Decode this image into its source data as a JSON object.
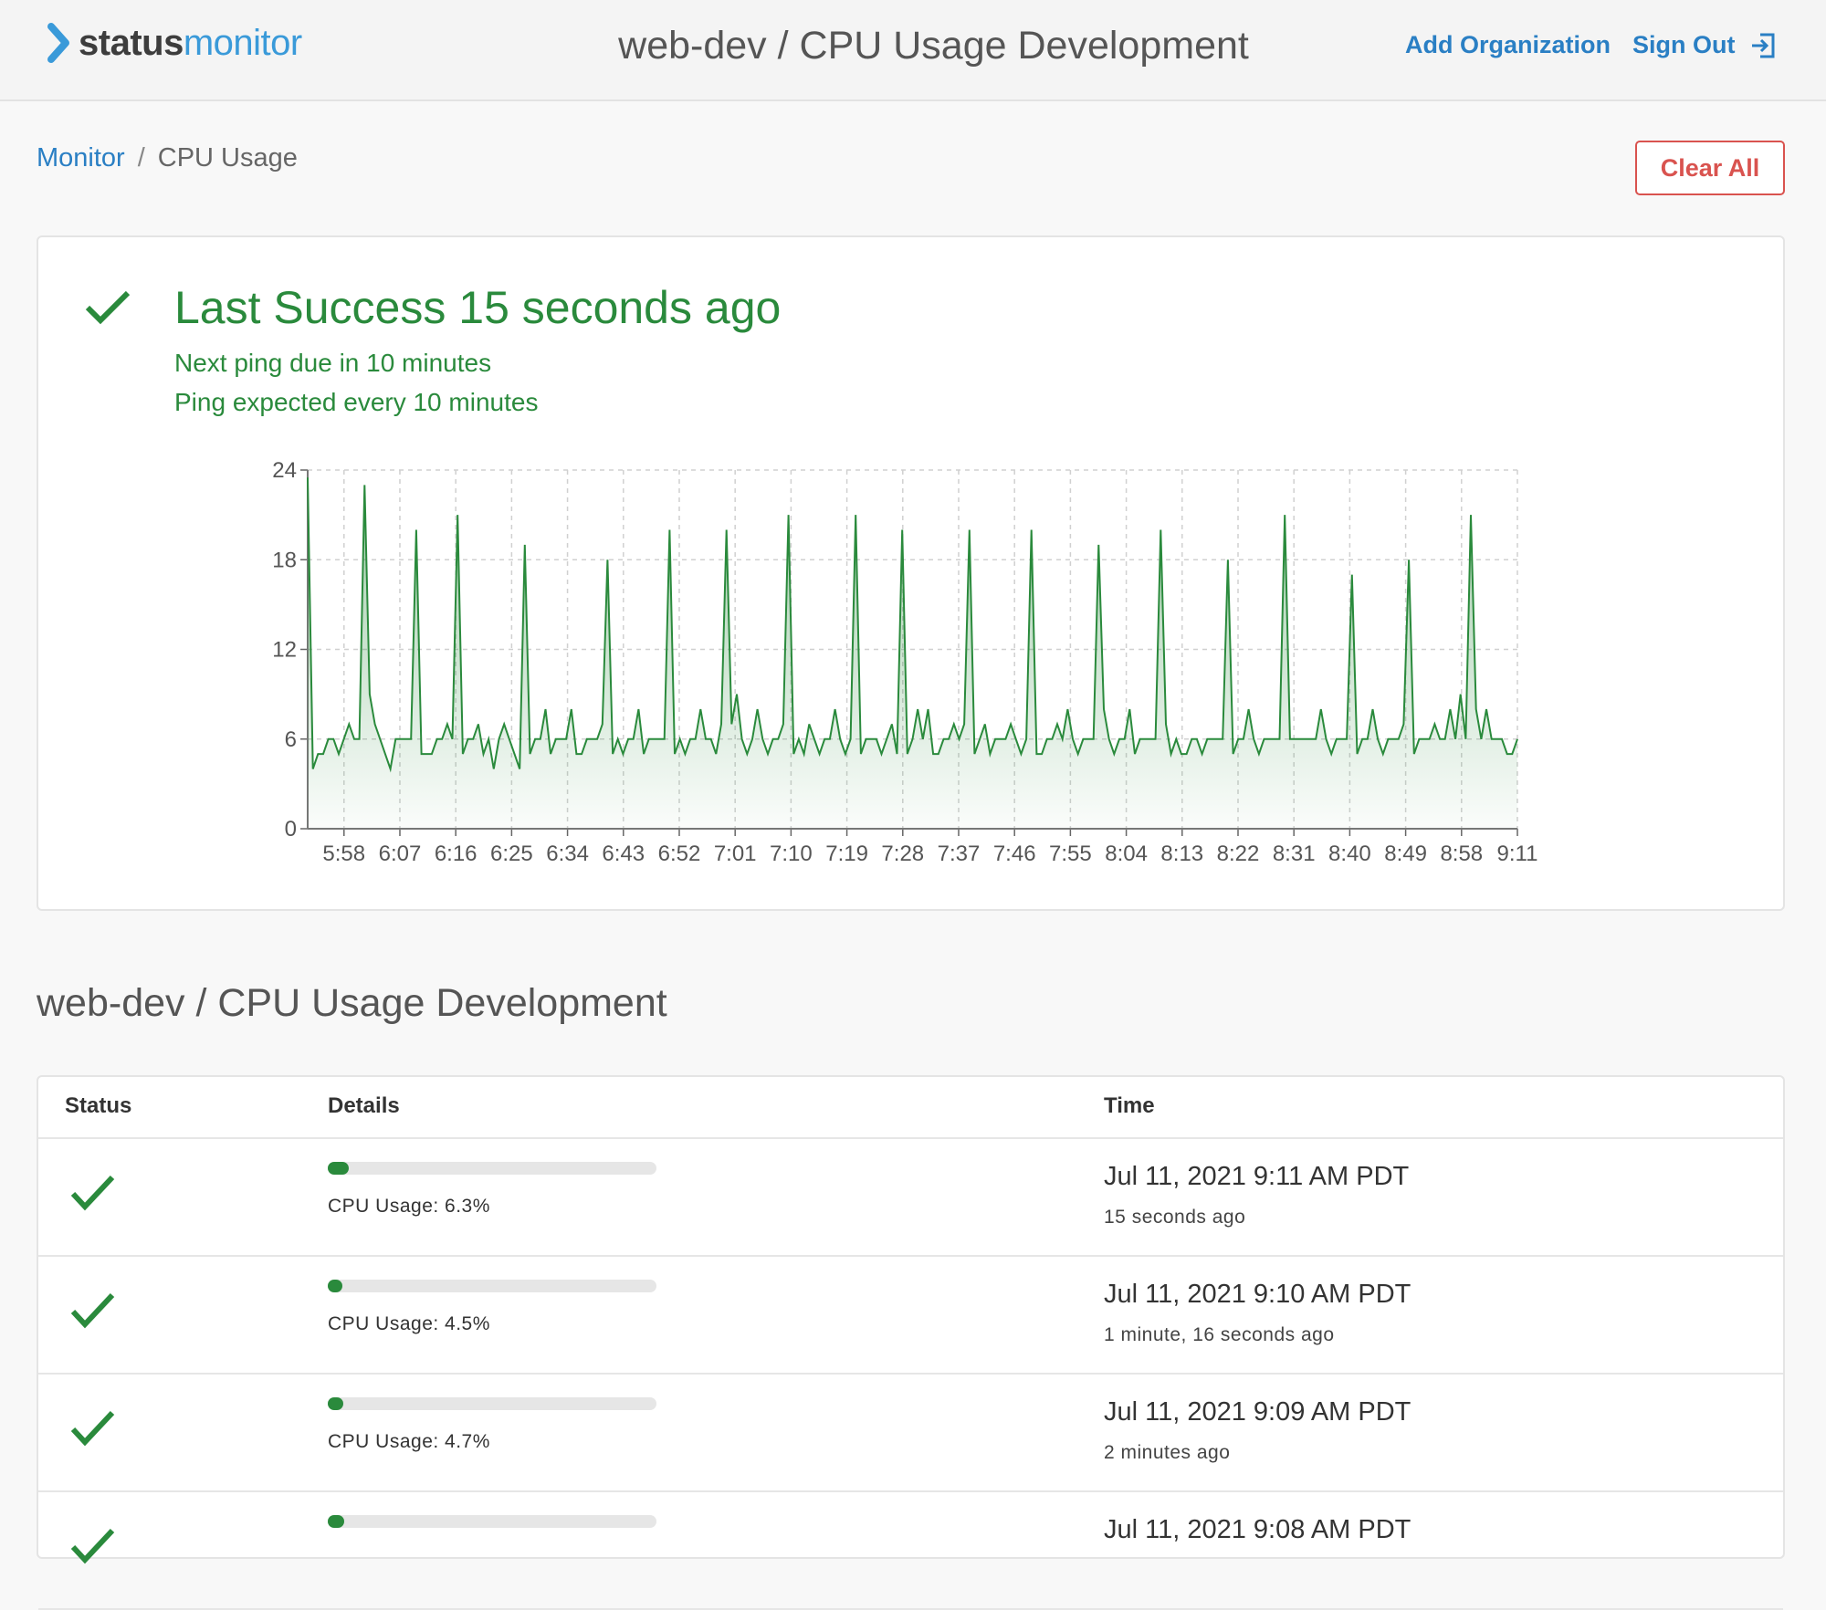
{
  "header": {
    "logo_part1": "status",
    "logo_part2": "monitor",
    "title": "web-dev / CPU Usage Development",
    "add_org": "Add Organization",
    "sign_out": "Sign Out",
    "chevron_icon": "chevron-right-icon",
    "sign_out_icon": "sign-out-icon",
    "brand_color": "#3a9ad9"
  },
  "breadcrumb": {
    "root": "Monitor",
    "separator": "/",
    "current": "CPU Usage"
  },
  "clear_all": "Clear All",
  "status_panel": {
    "icon": "check-icon",
    "title": "Last Success 15 seconds ago",
    "next_ping": "Next ping due in 10 minutes",
    "interval": "Ping expected every 10 minutes",
    "color": "#2a8a3c"
  },
  "chart_data": {
    "type": "area",
    "title": "",
    "xlabel": "",
    "ylabel": "",
    "ylim": [
      0,
      24
    ],
    "yticks": [
      0,
      6,
      12,
      18,
      24
    ],
    "xticks": [
      "5:58",
      "6:07",
      "6:16",
      "6:25",
      "6:34",
      "6:43",
      "6:52",
      "7:01",
      "7:10",
      "7:19",
      "7:28",
      "7:37",
      "7:46",
      "7:55",
      "8:04",
      "8:13",
      "8:22",
      "8:31",
      "8:40",
      "8:49",
      "8:58",
      "9:11"
    ],
    "grid": true,
    "legend": "none",
    "series": [
      {
        "color": "#2a8a3c",
        "values": [
          23.5,
          4,
          5,
          5,
          6,
          6,
          5,
          6,
          7,
          6,
          6,
          23,
          9,
          7,
          6,
          5,
          4,
          6,
          6,
          6,
          6,
          20,
          5,
          5,
          5,
          6,
          6,
          7,
          6,
          21,
          5,
          6,
          6,
          7,
          5,
          6,
          4,
          6,
          7,
          6,
          5,
          4,
          19,
          5,
          6,
          6,
          8,
          5,
          6,
          6,
          6,
          8,
          5,
          5,
          6,
          6,
          6,
          7,
          18,
          5,
          6,
          5,
          6,
          6,
          8,
          5,
          6,
          6,
          6,
          6,
          20,
          5,
          6,
          5,
          6,
          6,
          8,
          6,
          6,
          5,
          7,
          20,
          7,
          9,
          6,
          5,
          6,
          8,
          6,
          5,
          6,
          6,
          7,
          21,
          5,
          6,
          5,
          7,
          6,
          5,
          6,
          6,
          8,
          6,
          5,
          6,
          21,
          5,
          6,
          6,
          6,
          5,
          6,
          7,
          5,
          20,
          5,
          6,
          8,
          6,
          8,
          5,
          5,
          6,
          6,
          7,
          6,
          7,
          20,
          5,
          6,
          7,
          5,
          6,
          6,
          6,
          7,
          6,
          5,
          6,
          20,
          5,
          5,
          6,
          6,
          7,
          6,
          8,
          6,
          5,
          6,
          6,
          6,
          19,
          8,
          6,
          5,
          6,
          6,
          8,
          5,
          6,
          6,
          6,
          6,
          20,
          7,
          5,
          6,
          5,
          5,
          6,
          6,
          5,
          6,
          6,
          6,
          6,
          18,
          5,
          6,
          6,
          8,
          6,
          5,
          6,
          6,
          6,
          6,
          21,
          6,
          6,
          6,
          6,
          6,
          6,
          8,
          6,
          5,
          6,
          6,
          6,
          17,
          5,
          6,
          6,
          8,
          6,
          5,
          6,
          6,
          6,
          7,
          18,
          5,
          6,
          6,
          6,
          7,
          6,
          6,
          8,
          6,
          9,
          6,
          21,
          8,
          6,
          8,
          6,
          6,
          6,
          5,
          5,
          6
        ]
      }
    ]
  },
  "section_title": "web-dev / CPU Usage Development",
  "table": {
    "headers": {
      "status": "Status",
      "details": "Details",
      "time": "Time"
    },
    "rows": [
      {
        "status_icon": "check-icon",
        "cpu_fraction": 0.063,
        "cpu_label": "CPU Usage: 6.3%",
        "time": "Jul 11, 2021 9:11 AM PDT",
        "relative": "15 seconds ago"
      },
      {
        "status_icon": "check-icon",
        "cpu_fraction": 0.045,
        "cpu_label": "CPU Usage: 4.5%",
        "time": "Jul 11, 2021 9:10 AM PDT",
        "relative": "1 minute, 16 seconds ago"
      },
      {
        "status_icon": "check-icon",
        "cpu_fraction": 0.047,
        "cpu_label": "CPU Usage: 4.7%",
        "time": "Jul 11, 2021 9:09 AM PDT",
        "relative": "2 minutes ago"
      },
      {
        "status_icon": "check-icon",
        "cpu_fraction": 0.05,
        "cpu_label": "",
        "time": "Jul 11, 2021 9:08 AM PDT",
        "relative": ""
      }
    ]
  }
}
